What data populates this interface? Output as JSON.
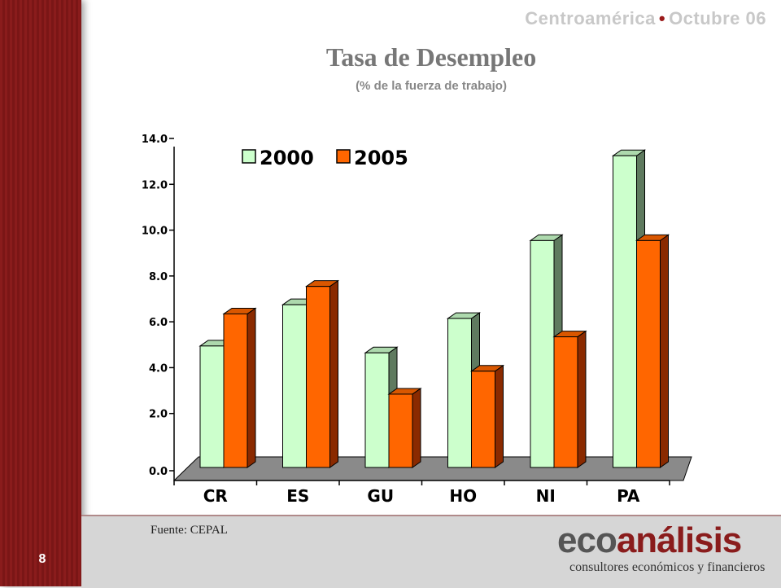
{
  "header": {
    "region": "Centroamérica",
    "separator": "•",
    "date": "Octubre 06"
  },
  "page_number": "8",
  "footer": {
    "source": "Fuente: CEPAL",
    "logo_eco": "eco",
    "logo_analisis": "análisis",
    "tagline": "consultores económicos y financieros"
  },
  "colors": {
    "series_2000": "#ccffcc",
    "series_2005": "#ff6600",
    "sidebar": "#8a1c1c",
    "floor": "#8a8a8a"
  },
  "chart_data": {
    "type": "bar",
    "title": "Tasa de Desempleo",
    "subtitle": "(% de la fuerza de trabajo)",
    "categories": [
      "CR",
      "ES",
      "GU",
      "HO",
      "NI",
      "PA"
    ],
    "series": [
      {
        "name": "2000",
        "values": [
          5.3,
          7.1,
          5.0,
          6.5,
          9.9,
          13.6
        ]
      },
      {
        "name": "2005",
        "values": [
          6.7,
          7.9,
          3.2,
          4.2,
          5.7,
          9.9
        ]
      }
    ],
    "yticks": [
      "0.0",
      "2.0",
      "4.0",
      "6.0",
      "8.0",
      "10.0",
      "12.0",
      "14.0"
    ],
    "ylim": [
      0,
      14
    ],
    "legend_position": "top-left",
    "grid": false
  }
}
